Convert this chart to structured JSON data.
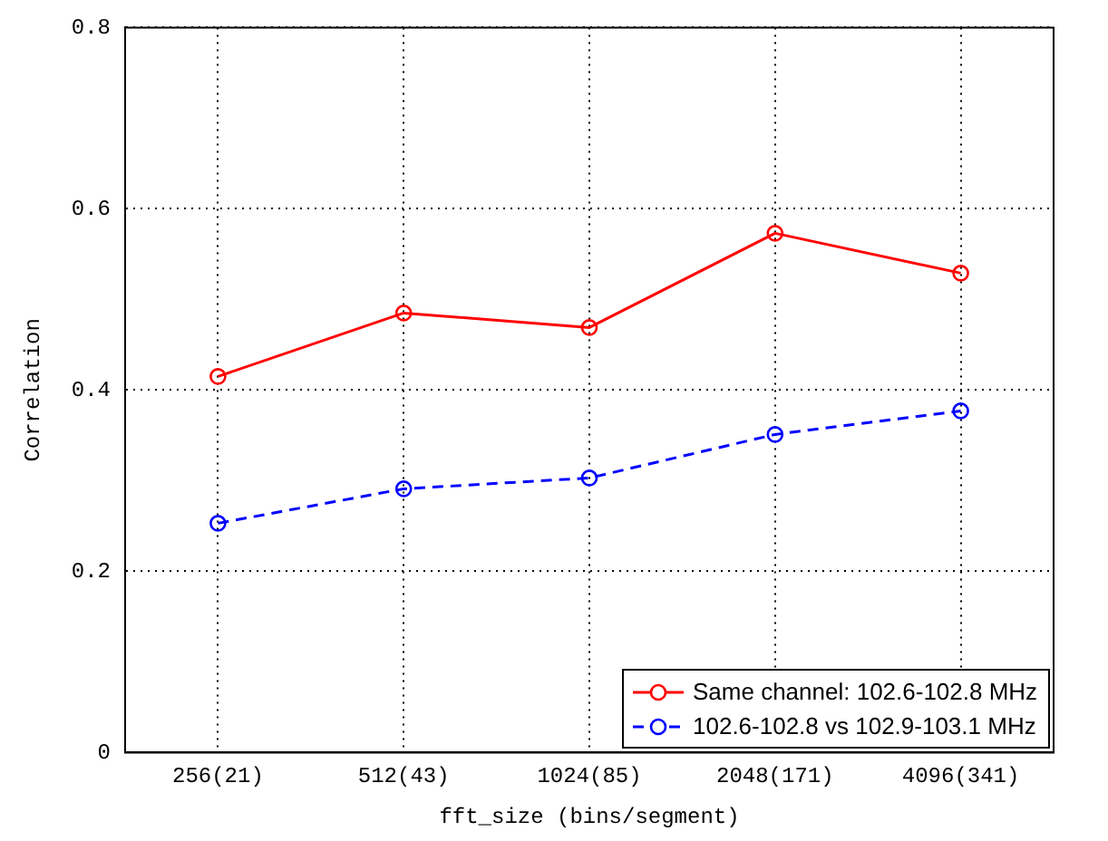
{
  "chart_data": {
    "type": "line",
    "xlabel": "fft_size (bins/segment)",
    "ylabel": "Correlation",
    "categories": [
      "256(21)",
      "512(43)",
      "1024(85)",
      "2048(171)",
      "4096(341)"
    ],
    "series": [
      {
        "name": "Same channel: 102.6-102.8 MHz",
        "color": "#ff0000",
        "values": [
          0.415,
          0.485,
          0.469,
          0.573,
          0.529
        ],
        "line_style": "solid"
      },
      {
        "name": "102.6-102.8 vs 102.9-103.1 MHz",
        "color": "#0000ff",
        "values": [
          0.253,
          0.291,
          0.303,
          0.351,
          0.377
        ],
        "line_style": "dashed"
      }
    ],
    "ylim": [
      0,
      0.8
    ],
    "yticks": [
      0,
      0.2,
      0.4,
      0.6,
      0.8
    ],
    "grid": true,
    "legend": "bottom right",
    "marker": "circle"
  }
}
